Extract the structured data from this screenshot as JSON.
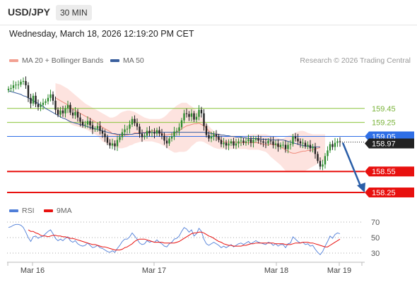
{
  "header": {
    "pair": "USD/JPY",
    "timeframe": "30 MIN",
    "datetime": "Wednesday, March 18, 2026 12:19:20 PM CET",
    "credit": "Research © 2026 Trading Central"
  },
  "legend": {
    "ma20_label": "MA 20 + Bollinger Bands",
    "ma50_label": "MA 50",
    "rsi_label": "RSI",
    "ma9_label": "9MA"
  },
  "colors": {
    "ma20": "#f08d7e",
    "bands_fill": "#fde3df",
    "ma50": "#3a5f9e",
    "up_candle": "#2e8b2e",
    "down_candle": "#222222",
    "resistance": "#8cc43c",
    "support": "#e8110f",
    "pivot": "#2f6fe6",
    "current": "#222222",
    "rsi": "#4f7ed8",
    "rsi_ma": "#e8110f",
    "arrow": "#2a5ea8"
  },
  "chart_data": {
    "type": "candlestick",
    "instrument": "USD/JPY",
    "interval": "30 MIN",
    "x_ticks": [
      "Mar 16",
      "Mar 17",
      "Mar 18",
      "Mar 19"
    ],
    "ylim": [
      158.15,
      159.88
    ],
    "levels": {
      "resistance": [
        159.45,
        159.25
      ],
      "pivot": 159.05,
      "current_price": 158.97,
      "support": [
        158.55,
        158.25
      ]
    },
    "price_series": [
      159.73,
      159.74,
      159.78,
      159.79,
      159.79,
      159.83,
      159.84,
      159.78,
      159.6,
      159.52,
      159.63,
      159.51,
      159.47,
      159.5,
      159.53,
      159.55,
      159.6,
      159.65,
      159.56,
      159.43,
      159.36,
      159.42,
      159.38,
      159.45,
      159.5,
      159.39,
      159.35,
      159.4,
      159.32,
      159.26,
      159.21,
      159.22,
      159.27,
      159.21,
      159.15,
      159.16,
      159.2,
      159.13,
      159.09,
      159.04,
      158.96,
      158.92,
      158.95,
      158.91,
      159.0,
      159.04,
      159.11,
      159.15,
      159.16,
      159.22,
      159.3,
      159.24,
      159.19,
      159.09,
      159.04,
      159.06,
      159.13,
      159.1,
      159.11,
      159.09,
      159.14,
      159.09,
      159.06,
      158.99,
      158.95,
      159.02,
      159.05,
      159.12,
      159.13,
      159.18,
      159.28,
      159.38,
      159.37,
      159.33,
      159.38,
      159.29,
      159.33,
      159.43,
      159.38,
      159.2,
      159.07,
      159.02,
      159.05,
      159.08,
      159.05,
      159.0,
      158.94,
      158.96,
      158.92,
      158.95,
      158.98,
      158.92,
      158.95,
      158.98,
      158.99,
      158.96,
      158.98,
      159.01,
      158.96,
      159.0,
      159.02,
      158.99,
      158.98,
      158.96,
      158.95,
      158.99,
      158.98,
      158.93,
      158.95,
      158.9,
      158.93,
      158.93,
      158.87,
      158.93,
      158.94,
      159.05,
      159.02,
      158.98,
      158.95,
      158.96,
      158.91,
      158.93,
      158.88,
      158.9,
      158.8,
      158.7,
      158.62,
      158.65,
      158.77,
      158.85,
      158.94,
      158.9,
      158.96,
      158.98,
      158.97
    ],
    "ma20_series": [
      null,
      null,
      null,
      null,
      null,
      null,
      null,
      null,
      null,
      null,
      null,
      null,
      null,
      null,
      null,
      null,
      null,
      null,
      null,
      159.6,
      159.58,
      159.56,
      159.54,
      159.52,
      159.5,
      159.46,
      159.44,
      159.42,
      159.4,
      159.38,
      159.36,
      159.34,
      159.32,
      159.31,
      159.28,
      159.26,
      159.24,
      159.21,
      159.18,
      159.16,
      159.14,
      159.12,
      159.09,
      159.08,
      159.07,
      159.06,
      159.07,
      159.07,
      159.07,
      159.08,
      159.08,
      159.1,
      159.1,
      159.1,
      159.1,
      159.11,
      159.11,
      159.12,
      159.13,
      159.13,
      159.12,
      159.11,
      159.09,
      159.08,
      159.07,
      159.08,
      159.08,
      159.09,
      159.11,
      159.13,
      159.16,
      159.18,
      159.2,
      159.21,
      159.22,
      159.23,
      159.23,
      159.24,
      159.22,
      159.2,
      159.17,
      159.13,
      159.1,
      159.07,
      159.04,
      159.02,
      158.99,
      158.97,
      158.97,
      158.97,
      158.97,
      158.97,
      158.97,
      158.96,
      158.96,
      158.96,
      158.96,
      158.96,
      158.96,
      158.96,
      158.96,
      158.96,
      158.95,
      158.94,
      158.93,
      158.93,
      158.94,
      158.93,
      158.93,
      158.92,
      158.9,
      158.88,
      158.86,
      158.84,
      158.82,
      158.81,
      158.81,
      158.82,
      158.83,
      158.84,
      158.84,
      158.85,
      158.85,
      158.86,
      158.87,
      158.88,
      158.89
    ],
    "ma50_series": [
      159.7,
      159.69,
      159.68,
      159.67,
      159.66,
      159.65,
      159.63,
      159.62,
      159.6,
      159.58,
      159.56,
      159.54,
      159.52,
      159.5,
      159.48,
      159.45,
      159.43,
      159.41,
      159.39,
      159.37,
      159.35,
      159.33,
      159.31,
      159.3,
      159.28,
      159.26,
      159.25,
      159.24,
      159.23,
      159.22,
      159.21,
      159.2,
      159.19,
      159.18,
      159.17,
      159.16,
      159.15,
      159.14,
      159.13,
      159.12,
      159.11,
      159.1,
      159.09,
      159.09,
      159.08,
      159.08,
      159.08,
      159.08,
      159.08,
      159.08,
      159.08,
      159.09,
      159.09,
      159.09,
      159.1,
      159.1,
      159.1,
      159.1,
      159.11,
      159.11,
      159.11,
      159.11,
      159.11,
      159.11,
      159.11,
      159.11,
      159.11,
      159.11,
      159.11,
      159.11,
      159.11,
      159.11,
      159.11,
      159.11,
      159.11,
      159.11,
      159.11,
      159.11,
      159.11,
      159.11,
      159.1,
      159.1,
      159.09,
      159.09,
      159.08,
      159.08,
      159.07,
      159.07,
      159.06,
      159.06,
      159.05,
      159.05,
      159.04,
      159.04,
      159.04,
      159.03,
      159.03,
      159.02,
      159.02,
      159.02,
      159.02,
      159.02,
      159.01,
      159.01,
      159.01,
      159.01,
      159.0,
      159.0,
      159.0,
      159.0,
      159.0,
      159.0,
      158.99,
      158.98,
      158.97,
      158.96,
      158.95,
      158.94,
      158.93,
      158.92,
      158.91,
      158.91,
      158.9,
      158.9,
      158.9,
      158.9,
      158.9
    ],
    "bb_upper_series": [
      null,
      null,
      null,
      null,
      null,
      null,
      null,
      null,
      null,
      null,
      null,
      null,
      null,
      null,
      null,
      null,
      null,
      null,
      null,
      159.81,
      159.8,
      159.79,
      159.77,
      159.75,
      159.73,
      159.7,
      159.67,
      159.64,
      159.61,
      159.58,
      159.55,
      159.52,
      159.5,
      159.48,
      159.46,
      159.44,
      159.42,
      159.4,
      159.38,
      159.36,
      159.34,
      159.32,
      159.32,
      159.33,
      159.35,
      159.38,
      159.4,
      159.41,
      159.42,
      159.42,
      159.41,
      159.4,
      159.38,
      159.36,
      159.34,
      159.32,
      159.31,
      159.3,
      159.3,
      159.3,
      159.3,
      159.3,
      159.31,
      159.33,
      159.36,
      159.4,
      159.43,
      159.46,
      159.49,
      159.51,
      159.53,
      159.53,
      159.53,
      159.5,
      159.48,
      159.45,
      159.42,
      159.38,
      159.33,
      159.29,
      159.24,
      159.2,
      159.16,
      159.13,
      159.11,
      159.09,
      159.08,
      159.07,
      159.06,
      159.06,
      159.06,
      159.06,
      159.06,
      159.06,
      159.06,
      159.06,
      159.06,
      159.07,
      159.08,
      159.08,
      159.08,
      159.08,
      159.08,
      159.08,
      159.08,
      159.07,
      159.06,
      159.05,
      159.04,
      159.03,
      159.02,
      159.02,
      159.04,
      159.06,
      159.07,
      159.09,
      159.1,
      159.12,
      159.13,
      159.13,
      159.12,
      159.1,
      159.09,
      159.08,
      159.08,
      159.08,
      159.08,
      159.08,
      159.08
    ],
    "bb_lower_series": [
      null,
      null,
      null,
      null,
      null,
      null,
      null,
      null,
      null,
      null,
      null,
      null,
      null,
      null,
      null,
      null,
      null,
      null,
      null,
      159.39,
      159.36,
      159.33,
      159.31,
      159.29,
      159.27,
      159.23,
      159.21,
      159.2,
      159.19,
      159.18,
      159.17,
      159.16,
      159.14,
      159.12,
      159.1,
      159.08,
      159.06,
      159.02,
      158.98,
      158.96,
      158.94,
      158.92,
      158.91,
      158.9,
      158.89,
      158.88,
      158.88,
      158.89,
      158.9,
      158.92,
      158.93,
      158.95,
      158.96,
      158.97,
      158.98,
      158.98,
      158.98,
      158.98,
      158.98,
      158.97,
      158.96,
      158.95,
      158.93,
      158.91,
      158.89,
      158.86,
      158.84,
      158.82,
      158.82,
      158.83,
      158.83,
      158.83,
      158.84,
      158.87,
      158.91,
      158.94,
      158.97,
      158.98,
      158.98,
      158.97,
      158.95,
      158.93,
      158.91,
      158.89,
      158.88,
      158.87,
      158.87,
      158.87,
      158.87,
      158.87,
      158.87,
      158.87,
      158.87,
      158.87,
      158.87,
      158.87,
      158.87,
      158.86,
      158.86,
      158.86,
      158.86,
      158.86,
      158.85,
      158.84,
      158.83,
      158.8,
      158.76,
      158.73,
      158.7,
      158.67,
      158.64,
      158.6,
      158.56,
      158.56,
      158.56,
      158.56,
      158.56,
      158.56,
      158.56,
      158.56,
      158.56,
      158.58,
      158.6,
      158.62,
      158.64,
      158.66,
      158.68,
      158.7,
      158.7
    ],
    "rsi": {
      "ylim": [
        20,
        80
      ],
      "ticks": [
        70,
        50,
        30
      ],
      "rsi_series": [
        63,
        64,
        66,
        67,
        67,
        66,
        63,
        57,
        50,
        45,
        51,
        52,
        49,
        51,
        52,
        55,
        58,
        60,
        55,
        49,
        46,
        48,
        46,
        49,
        51,
        46,
        44,
        46,
        42,
        40,
        39,
        40,
        43,
        40,
        37,
        38,
        40,
        37,
        36,
        34,
        32,
        31,
        33,
        31,
        36,
        40,
        45,
        48,
        48,
        51,
        56,
        52,
        48,
        43,
        41,
        42,
        46,
        44,
        45,
        44,
        47,
        44,
        42,
        39,
        38,
        42,
        44,
        48,
        49,
        52,
        58,
        63,
        61,
        57,
        60,
        52,
        55,
        62,
        58,
        48,
        42,
        40,
        42,
        44,
        42,
        40,
        37,
        39,
        37,
        39,
        41,
        38,
        40,
        42,
        43,
        41,
        43,
        45,
        42,
        44,
        46,
        44,
        43,
        42,
        41,
        44,
        43,
        40,
        42,
        39,
        41,
        41,
        37,
        42,
        43,
        51,
        48,
        45,
        43,
        44,
        41,
        42,
        39,
        40,
        35,
        31,
        28,
        32,
        39,
        45,
        52,
        49,
        54,
        56,
        55
      ],
      "rsi_ma_series": [
        null,
        null,
        null,
        null,
        null,
        null,
        null,
        null,
        60,
        58,
        58,
        56,
        55,
        53,
        52,
        52,
        51,
        52,
        53,
        53,
        52,
        52,
        51,
        51,
        50,
        49,
        49,
        48,
        47,
        46,
        45,
        44,
        43,
        42,
        41,
        41,
        40,
        39,
        38,
        38,
        37,
        36,
        35,
        34,
        34,
        34,
        35,
        37,
        38,
        40,
        42,
        45,
        47,
        48,
        48,
        48,
        47,
        46,
        45,
        44,
        44,
        44,
        44,
        43,
        43,
        43,
        43,
        43,
        44,
        45,
        47,
        49,
        51,
        53,
        55,
        56,
        56,
        57,
        57,
        56,
        54,
        52,
        51,
        49,
        47,
        45,
        44,
        42,
        41,
        40,
        40,
        39,
        39,
        39,
        39,
        40,
        40,
        41,
        42,
        42,
        43,
        43,
        43,
        43,
        43,
        43,
        43,
        43,
        42,
        42,
        42,
        42,
        41,
        41,
        41,
        42,
        43,
        43,
        43,
        44,
        44,
        44,
        43,
        43,
        42,
        41,
        40,
        39,
        38,
        38,
        40,
        42,
        44,
        46,
        48
      ]
    }
  }
}
